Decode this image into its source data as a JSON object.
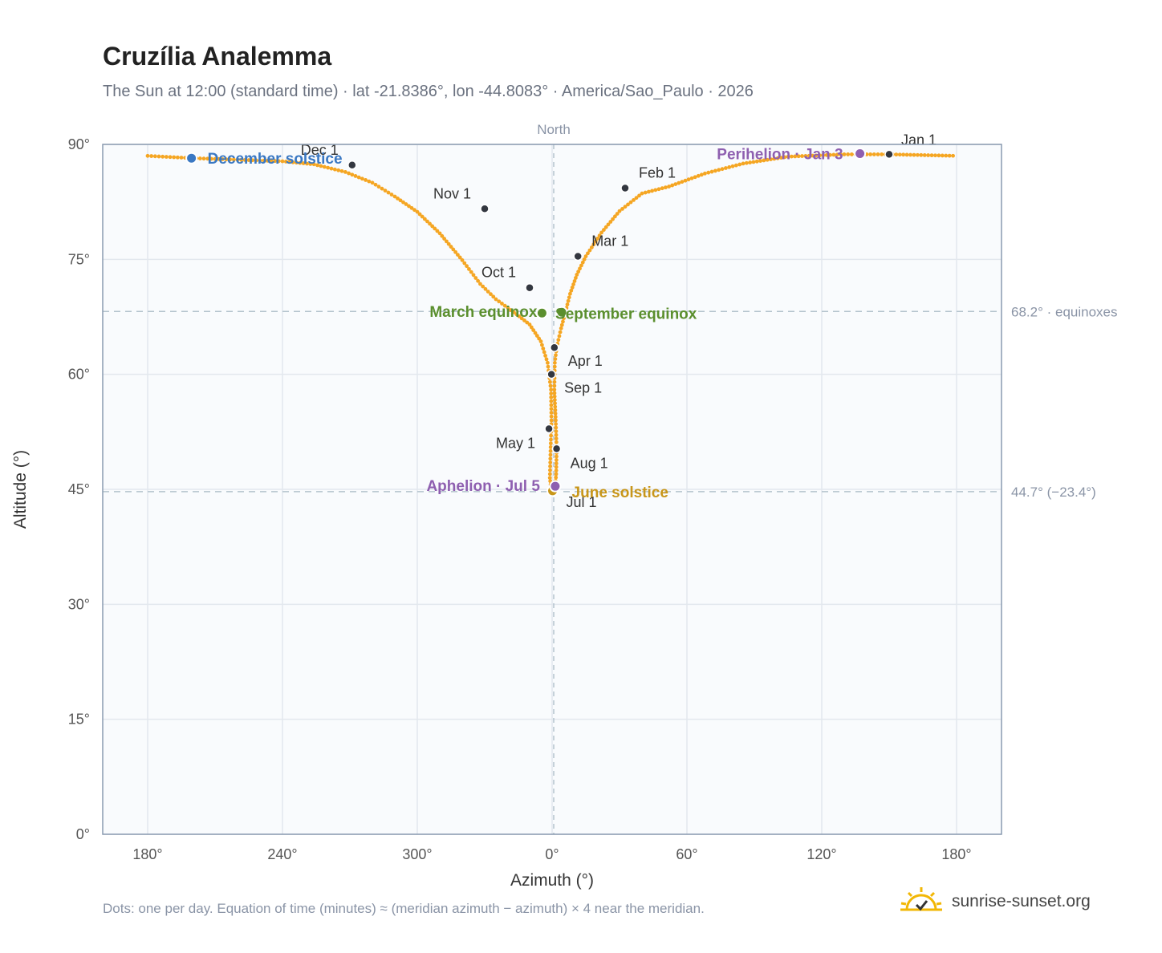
{
  "header": {
    "title": "Cruzília Analemma",
    "subtitle": "The Sun at 12:00 (standard time) · lat -21.8386°, lon -44.8083° · America/Sao_Paulo · 2026"
  },
  "footer": {
    "note": "Dots: one per day. Equation of time (minutes) ≈ (meridian azimuth − azimuth) × 4 near the meridian.",
    "brand": "sunrise-sunset.org"
  },
  "colors": {
    "curve": "#f5a623",
    "month_dot": "#333740",
    "december_solstice": "#3a78c3",
    "june_solstice": "#c8961a",
    "equinox": "#5b8f2e",
    "apsis": "#8e5fb0",
    "reference_line": "#b4c3cd",
    "plot_bg": "#f9fbfd",
    "grid": "#e3e8ee"
  },
  "chart_data": {
    "type": "scatter",
    "xlabel": "Azimuth (°)",
    "ylabel": "Altitude (°)",
    "xlim": [
      160,
      200
    ],
    "ylim": [
      0,
      90
    ],
    "x_axis_note": "azimuth wraps through 0°; plotted as continuous value 160..200 where 180 = 0°",
    "x_ticks": [
      {
        "value": 180,
        "label": "180°"
      },
      {
        "value": 240,
        "label": "240°"
      },
      {
        "value": 300,
        "label": "300°"
      },
      {
        "value": 360,
        "label": "0°"
      },
      {
        "value": 420,
        "label": "60°"
      },
      {
        "value": 480,
        "label": "120°"
      },
      {
        "value": 540,
        "label": "180°"
      }
    ],
    "y_ticks": [
      {
        "value": 0,
        "label": "0°"
      },
      {
        "value": 15,
        "label": "15°"
      },
      {
        "value": 30,
        "label": "30°"
      },
      {
        "value": 45,
        "label": "45°"
      },
      {
        "value": 60,
        "label": "60°"
      },
      {
        "value": 75,
        "label": "75°"
      },
      {
        "value": 90,
        "label": "90°"
      }
    ],
    "north_label": "North",
    "reference_lines": [
      {
        "altitude": 68.2,
        "label": "68.2° · equinoxes"
      },
      {
        "altitude": 44.7,
        "label": "44.7° (−23.4°)"
      }
    ],
    "path_points": [
      [
        180,
        88.5
      ],
      [
        200,
        88.2
      ],
      [
        220,
        88.0
      ],
      [
        240,
        87.8
      ],
      [
        254,
        87.4
      ],
      [
        268,
        86.4
      ],
      [
        280,
        85.0
      ],
      [
        290,
        83.2
      ],
      [
        300,
        81.2
      ],
      [
        310,
        78.4
      ],
      [
        320,
        74.9
      ],
      [
        328,
        71.8
      ],
      [
        335,
        69.8
      ],
      [
        343,
        68.1
      ],
      [
        350,
        66.5
      ],
      [
        355,
        64.3
      ],
      [
        358,
        61.5
      ],
      [
        359.5,
        58.0
      ],
      [
        359.7,
        54.0
      ],
      [
        359.3,
        50.0
      ],
      [
        359.0,
        46.5
      ],
      [
        359.5,
        45.2
      ],
      [
        360.5,
        44.7
      ],
      [
        361.3,
        45.2
      ],
      [
        361.8,
        47.0
      ],
      [
        362.0,
        50.2
      ],
      [
        361.6,
        54.0
      ],
      [
        361.0,
        58.0
      ],
      [
        361.2,
        61.5
      ],
      [
        362.0,
        63.5
      ],
      [
        364.0,
        66.0
      ],
      [
        366.0,
        68.2
      ],
      [
        368.0,
        70.5
      ],
      [
        371.0,
        73.0
      ],
      [
        375.0,
        75.4
      ],
      [
        382.0,
        78.5
      ],
      [
        390.0,
        81.3
      ],
      [
        400.0,
        83.6
      ],
      [
        412.0,
        84.5
      ],
      [
        428.0,
        86.2
      ],
      [
        445.0,
        87.5
      ],
      [
        465.0,
        88.4
      ],
      [
        490.0,
        88.7
      ],
      [
        510.0,
        88.7
      ],
      [
        540.0,
        88.5
      ]
    ],
    "month_markers": [
      {
        "label": "Jan 1",
        "azimuth": 510.0,
        "altitude": 88.7
      },
      {
        "label": "Feb 1",
        "azimuth": 392.5,
        "altitude": 84.3
      },
      {
        "label": "Mar 1",
        "azimuth": 371.5,
        "altitude": 75.4
      },
      {
        "label": "Apr 1",
        "azimuth": 361.0,
        "altitude": 63.5
      },
      {
        "label": "May 1",
        "azimuth": 358.6,
        "altitude": 52.9
      },
      {
        "label": "Jul 1",
        "azimuth": 359.8,
        "altitude": 44.8
      },
      {
        "label": "Aug 1",
        "azimuth": 362.0,
        "altitude": 50.3
      },
      {
        "label": "Sep 1",
        "azimuth": 359.7,
        "altitude": 60.0
      },
      {
        "label": "Oct 1",
        "azimuth": 350.0,
        "altitude": 71.3
      },
      {
        "label": "Nov 1",
        "azimuth": 330.0,
        "altitude": 81.6
      },
      {
        "label": "Dec 1",
        "azimuth": 271.0,
        "altitude": 87.3
      }
    ],
    "events": [
      {
        "label": "December solstice",
        "azimuth": 199.5,
        "altitude": 88.2,
        "color_key": "december_solstice"
      },
      {
        "label": "June solstice",
        "azimuth": 360.2,
        "altitude": 44.8,
        "color_key": "june_solstice"
      },
      {
        "label": "March equinox",
        "azimuth": 355.5,
        "altitude": 68.0,
        "color_key": "equinox"
      },
      {
        "label": "September equinox",
        "azimuth": 364.3,
        "altitude": 68.1,
        "color_key": "equinox"
      },
      {
        "label": "Perihelion · Jan 3",
        "azimuth": 497.0,
        "altitude": 88.8,
        "color_key": "apsis"
      },
      {
        "label": "Aphelion · Jul 5",
        "azimuth": 361.4,
        "altitude": 45.4,
        "color_key": "apsis"
      }
    ]
  }
}
